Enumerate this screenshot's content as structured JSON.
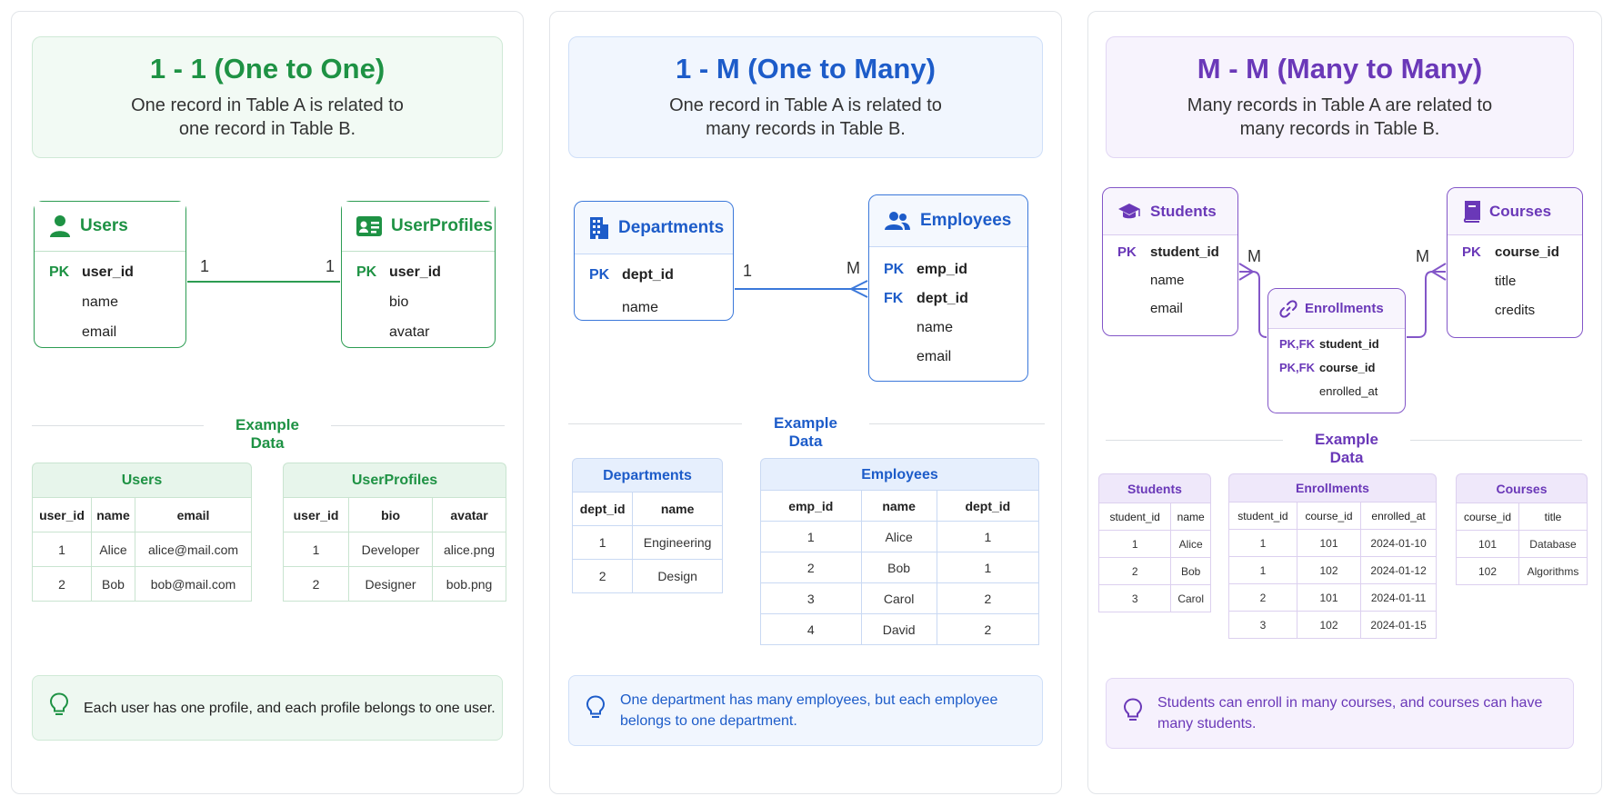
{
  "panels": {
    "one_to_one": {
      "title": "1 - 1 (One to One)",
      "desc_line1": "One record in Table A is related to",
      "desc_line2": "one record in Table B.",
      "entity_a": {
        "name": "Users",
        "icon": "user-icon",
        "rows": [
          {
            "key": "PK",
            "field": "user_id"
          },
          {
            "key": "",
            "field": "name"
          },
          {
            "key": "",
            "field": "email"
          }
        ]
      },
      "entity_b": {
        "name": "UserProfiles",
        "icon": "id-card-icon",
        "rows": [
          {
            "key": "PK",
            "field": "user_id"
          },
          {
            "key": "",
            "field": "bio"
          },
          {
            "key": "",
            "field": "avatar"
          }
        ]
      },
      "card_a": "1",
      "card_b": "1",
      "example_title": "Example Data",
      "table_a": {
        "title": "Users",
        "columns": [
          "user_id",
          "name",
          "email"
        ],
        "rows": [
          [
            "1",
            "Alice",
            "alice@mail.com"
          ],
          [
            "2",
            "Bob",
            "bob@mail.com"
          ]
        ]
      },
      "table_b": {
        "title": "UserProfiles",
        "columns": [
          "user_id",
          "bio",
          "avatar"
        ],
        "rows": [
          [
            "1",
            "Developer",
            "alice.png"
          ],
          [
            "2",
            "Designer",
            "bob.png"
          ]
        ]
      },
      "note": "Each user has one profile, and each profile belongs to one user.",
      "color": "#1e9244"
    },
    "one_to_many": {
      "title": "1 - M (One to Many)",
      "desc_line1": "One record in Table A is related to",
      "desc_line2": "many records in Table B.",
      "entity_a": {
        "name": "Departments",
        "icon": "building-icon",
        "rows": [
          {
            "key": "PK",
            "field": "dept_id"
          },
          {
            "key": "",
            "field": "name"
          }
        ]
      },
      "entity_b": {
        "name": "Employees",
        "icon": "users-icon",
        "rows": [
          {
            "key": "PK",
            "field": "emp_id"
          },
          {
            "key": "FK",
            "field": "dept_id"
          },
          {
            "key": "",
            "field": "name"
          },
          {
            "key": "",
            "field": "email"
          }
        ]
      },
      "card_a": "1",
      "card_b": "M",
      "example_title": "Example Data",
      "table_a": {
        "title": "Departments",
        "columns": [
          "dept_id",
          "name"
        ],
        "rows": [
          [
            "1",
            "Engineering"
          ],
          [
            "2",
            "Design"
          ]
        ]
      },
      "table_b": {
        "title": "Employees",
        "columns": [
          "emp_id",
          "name",
          "dept_id"
        ],
        "rows": [
          [
            "1",
            "Alice",
            "1"
          ],
          [
            "2",
            "Bob",
            "1"
          ],
          [
            "3",
            "Carol",
            "2"
          ],
          [
            "4",
            "David",
            "2"
          ]
        ]
      },
      "note_line1": "One department has many employees, but each employee",
      "note_line2": "belongs to one department.",
      "color": "#1d5cc9"
    },
    "many_to_many": {
      "title": "M - M (Many to Many)",
      "desc_line1": "Many records in Table A are related to",
      "desc_line2": "many records in Table B.",
      "entity_a": {
        "name": "Students",
        "icon": "graduation-cap-icon",
        "rows": [
          {
            "key": "PK",
            "field": "student_id"
          },
          {
            "key": "",
            "field": "name"
          },
          {
            "key": "",
            "field": "email"
          }
        ]
      },
      "entity_b": {
        "name": "Courses",
        "icon": "book-icon",
        "rows": [
          {
            "key": "PK",
            "field": "course_id"
          },
          {
            "key": "",
            "field": "title"
          },
          {
            "key": "",
            "field": "credits"
          }
        ]
      },
      "entity_join": {
        "name": "Enrollments",
        "icon": "link-icon",
        "rows": [
          {
            "key": "PK,FK",
            "field": "student_id"
          },
          {
            "key": "PK,FK",
            "field": "course_id"
          },
          {
            "key": "",
            "field": "enrolled_at"
          }
        ]
      },
      "card_a": "M",
      "card_b": "M",
      "example_title": "Example Data",
      "table_a": {
        "title": "Students",
        "columns": [
          "student_id",
          "name"
        ],
        "rows": [
          [
            "1",
            "Alice"
          ],
          [
            "2",
            "Bob"
          ],
          [
            "3",
            "Carol"
          ]
        ]
      },
      "table_join": {
        "title": "Enrollments",
        "columns": [
          "student_id",
          "course_id",
          "enrolled_at"
        ],
        "rows": [
          [
            "1",
            "101",
            "2024-01-10"
          ],
          [
            "1",
            "102",
            "2024-01-12"
          ],
          [
            "2",
            "101",
            "2024-01-11"
          ],
          [
            "3",
            "102",
            "2024-01-15"
          ]
        ]
      },
      "table_b": {
        "title": "Courses",
        "columns": [
          "course_id",
          "title"
        ],
        "rows": [
          [
            "101",
            "Database"
          ],
          [
            "102",
            "Algorithms"
          ]
        ]
      },
      "note_line1": "Students can enroll in many courses, and courses can have",
      "note_line2": "many students.",
      "color": "#6a38b8"
    }
  }
}
